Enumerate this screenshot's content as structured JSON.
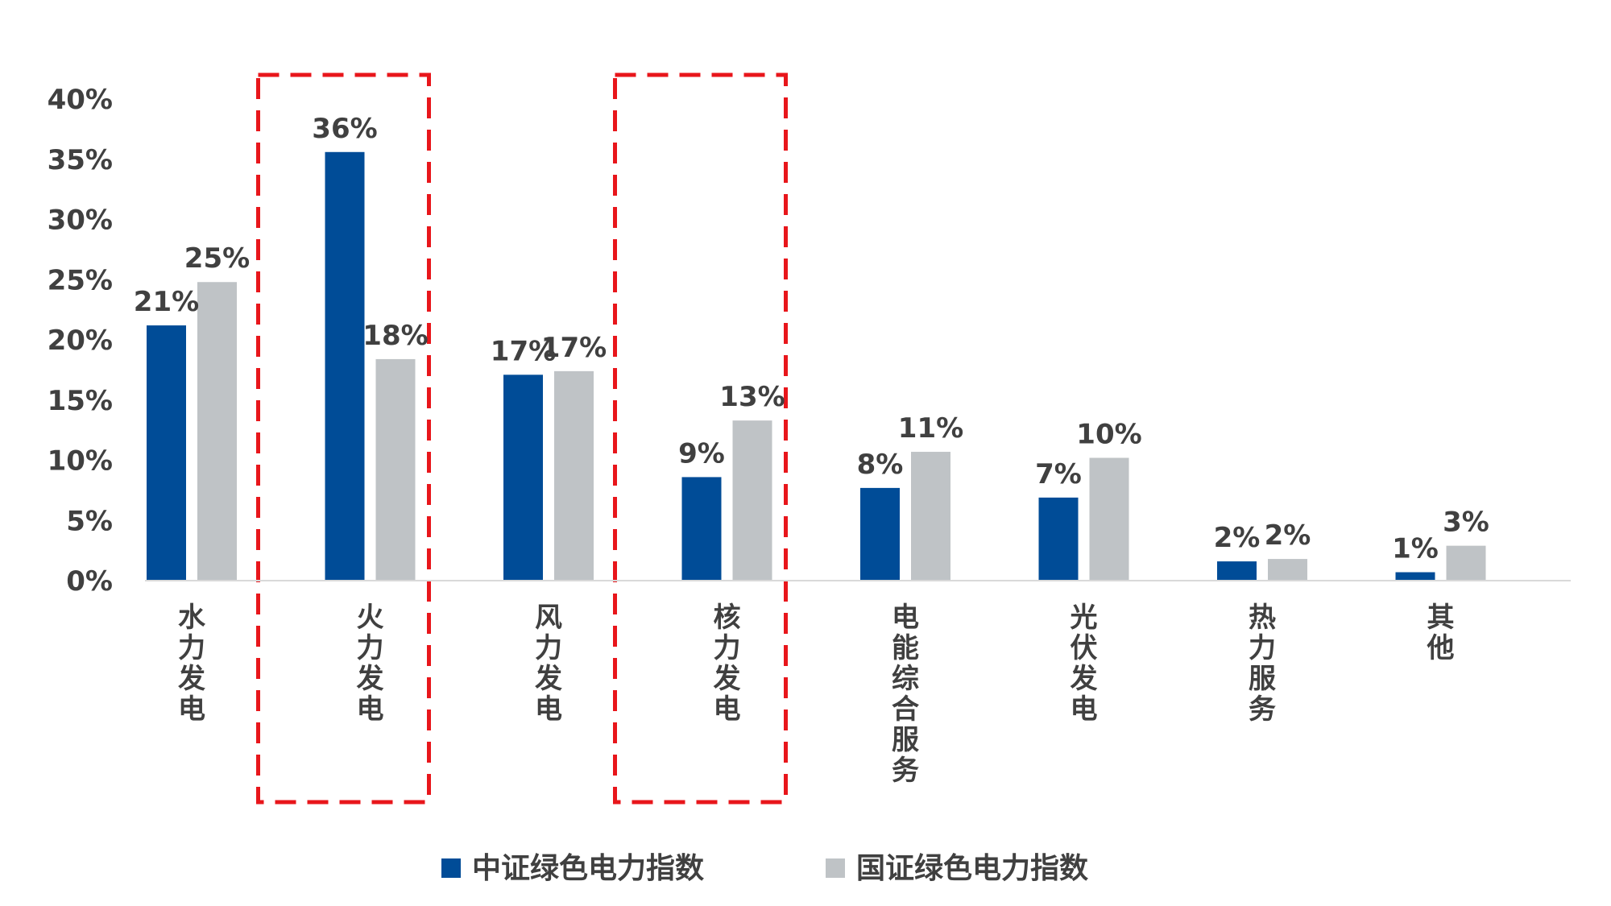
{
  "chart_data": {
    "type": "bar",
    "categories": [
      "水力发电",
      "火力发电",
      "风力发电",
      "核力发电",
      "电能综合服务",
      "光伏发电",
      "热力服务",
      "其他"
    ],
    "series": [
      {
        "name": "中证绿色电力指数",
        "values": [
          21.2,
          35.6,
          17.1,
          8.6,
          7.7,
          6.9,
          1.6,
          0.7
        ],
        "labels": [
          "21%",
          "36%",
          "17%",
          "9%",
          "8%",
          "7%",
          "2%",
          "1%"
        ],
        "color": "#004C97"
      },
      {
        "name": "国证绿色电力指数",
        "values": [
          24.8,
          18.4,
          17.4,
          13.3,
          10.7,
          10.2,
          1.8,
          2.9
        ],
        "labels": [
          "25%",
          "18%",
          "17%",
          "13%",
          "11%",
          "10%",
          "2%",
          "3%"
        ],
        "color": "#BFC3C6"
      }
    ],
    "ylim": [
      0,
      40
    ],
    "yticks": [
      "0%",
      "5%",
      "10%",
      "15%",
      "20%",
      "25%",
      "30%",
      "35%",
      "40%"
    ],
    "grid": false,
    "legend": "bottom",
    "highlight_categories": [
      "火力发电",
      "核力发电"
    ],
    "highlight_color": "#E8161B"
  }
}
